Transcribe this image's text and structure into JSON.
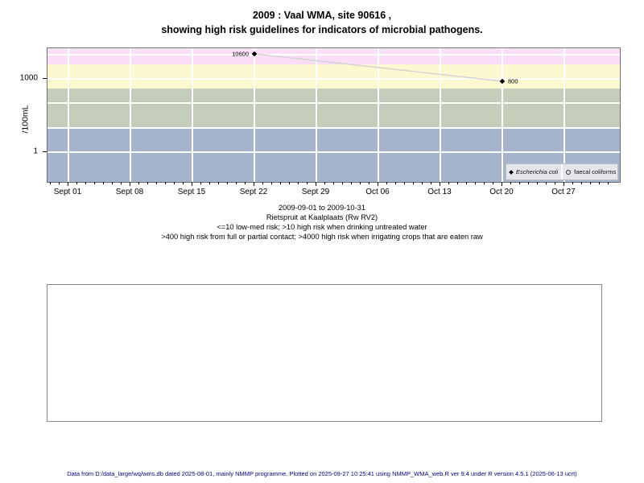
{
  "title": {
    "line1": "2009 : Vaal WMA, site 90616 ,",
    "line2": "showing high risk guidelines for indicators of microbial pathogens."
  },
  "chart_data": {
    "type": "line",
    "title": "2009 : Vaal WMA, site 90616 , showing high risk guidelines for indicators of microbial pathogens.",
    "ylabel": "/100mL",
    "y_scale": "log10",
    "ylim": [
      0.06,
      17000
    ],
    "x_range_days": [
      -2.4,
      62.3
    ],
    "grid": true,
    "legend_position": "bottom-right-inside",
    "y_ticks": [
      {
        "value": 1000,
        "label": "1000"
      },
      {
        "value": 1,
        "label": "1"
      }
    ],
    "y_gridline_values": [
      10000,
      1000,
      100,
      10,
      1
    ],
    "x_ticks": [
      {
        "day": 0,
        "label": "Sept 01"
      },
      {
        "day": 7,
        "label": "Sept 08"
      },
      {
        "day": 14,
        "label": "Sept 15"
      },
      {
        "day": 21,
        "label": "Sept 22"
      },
      {
        "day": 28,
        "label": "Sept 29"
      },
      {
        "day": 35,
        "label": "Oct 06"
      },
      {
        "day": 42,
        "label": "Oct 13"
      },
      {
        "day": 49,
        "label": "Oct 20"
      },
      {
        "day": 56,
        "label": "Oct 27"
      }
    ],
    "x_minor_ticks_days": {
      "start": -2,
      "end": 61
    },
    "risk_bands": [
      {
        "name": "high-risk-irrigating-crops",
        "from": 4000,
        "to": 17000,
        "color": "#fadef7"
      },
      {
        "name": "high-risk-full-partial-contact",
        "from": 400,
        "to": 4000,
        "color": "#fcf8cf"
      },
      {
        "name": "high-risk-drinking-untreated",
        "from": 10,
        "to": 400,
        "color": "#c5cdbb"
      },
      {
        "name": "low-med-risk",
        "from": 0.06,
        "to": 10,
        "color": "#a5b3cd"
      }
    ],
    "series": [
      {
        "name": "Escherichia coli",
        "marker": "filled-diamond",
        "line_color": "#d5d5d5",
        "points": [
          {
            "date": "Sept 22",
            "day": 21,
            "value": 10600,
            "label": "10600",
            "label_side": "left"
          },
          {
            "date": "Oct 20",
            "day": 49,
            "value": 800,
            "label": "800",
            "label_side": "right"
          }
        ]
      },
      {
        "name": "faecal coliforms",
        "marker": "open-circle",
        "points": []
      }
    ]
  },
  "legend": {
    "items": [
      {
        "label": "Escherichia coli",
        "marker": "filled-diamond",
        "italic": true
      },
      {
        "label": "faecal coliforms",
        "marker": "open-circle",
        "italic": false
      }
    ]
  },
  "caption": {
    "line1": "2009-09-01 to 2009-10-31",
    "line2": "Rietspruit at Kaalplaats (Rw RV2)",
    "line3": "<=10 low-med risk; >10 high risk when drinking untreated water",
    "line4": ">400 high risk from full or partial contact; >4000 high risk when irrigating crops that are eaten raw"
  },
  "footer": {
    "text": "Data from D:/data_large/wq/wms.db dated 2025-08-01, mainly NMMP programme. Plotted on 2025-09-27 10:25:41 using NMMP_WMA_web.R ver 9.4 under R version 4.5.1 (2025-06-13 ucrt)",
    "color": "#00008b"
  }
}
